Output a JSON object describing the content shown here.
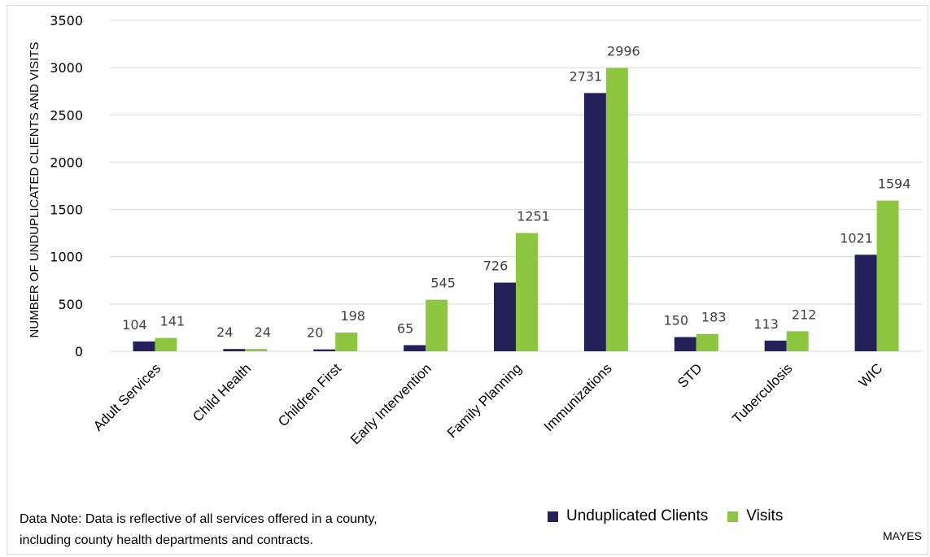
{
  "chart_data": {
    "type": "bar",
    "categories": [
      "Adult Services",
      "Child Health",
      "Children First",
      "Early Intervention",
      "Family Planning",
      "Immunizations",
      "STD",
      "Tuberculosis",
      "WIC"
    ],
    "series": [
      {
        "name": "Unduplicated Clients",
        "values": [
          104,
          24,
          20,
          65,
          726,
          2731,
          150,
          113,
          1021
        ],
        "color": "#23205a"
      },
      {
        "name": "Visits",
        "values": [
          141,
          24,
          198,
          545,
          1251,
          2996,
          183,
          212,
          1594
        ],
        "color": "#8dc63f"
      }
    ],
    "ylabel": "NUMBER OF UNDUPLICATED CLIENTS AND VISITS",
    "ylim": [
      0,
      3500
    ],
    "yticks": [
      0,
      500,
      1000,
      1500,
      2000,
      2500,
      3000,
      3500
    ],
    "grid": true,
    "legend": "bottom"
  },
  "note": {
    "line1": "Data Note: Data is reflective of all services offered in a county,",
    "line2": "including county health departments and contracts."
  },
  "county": "MAYES",
  "colors": {
    "gridline": "#d9d9d9",
    "frame": "#d9d9d9"
  }
}
